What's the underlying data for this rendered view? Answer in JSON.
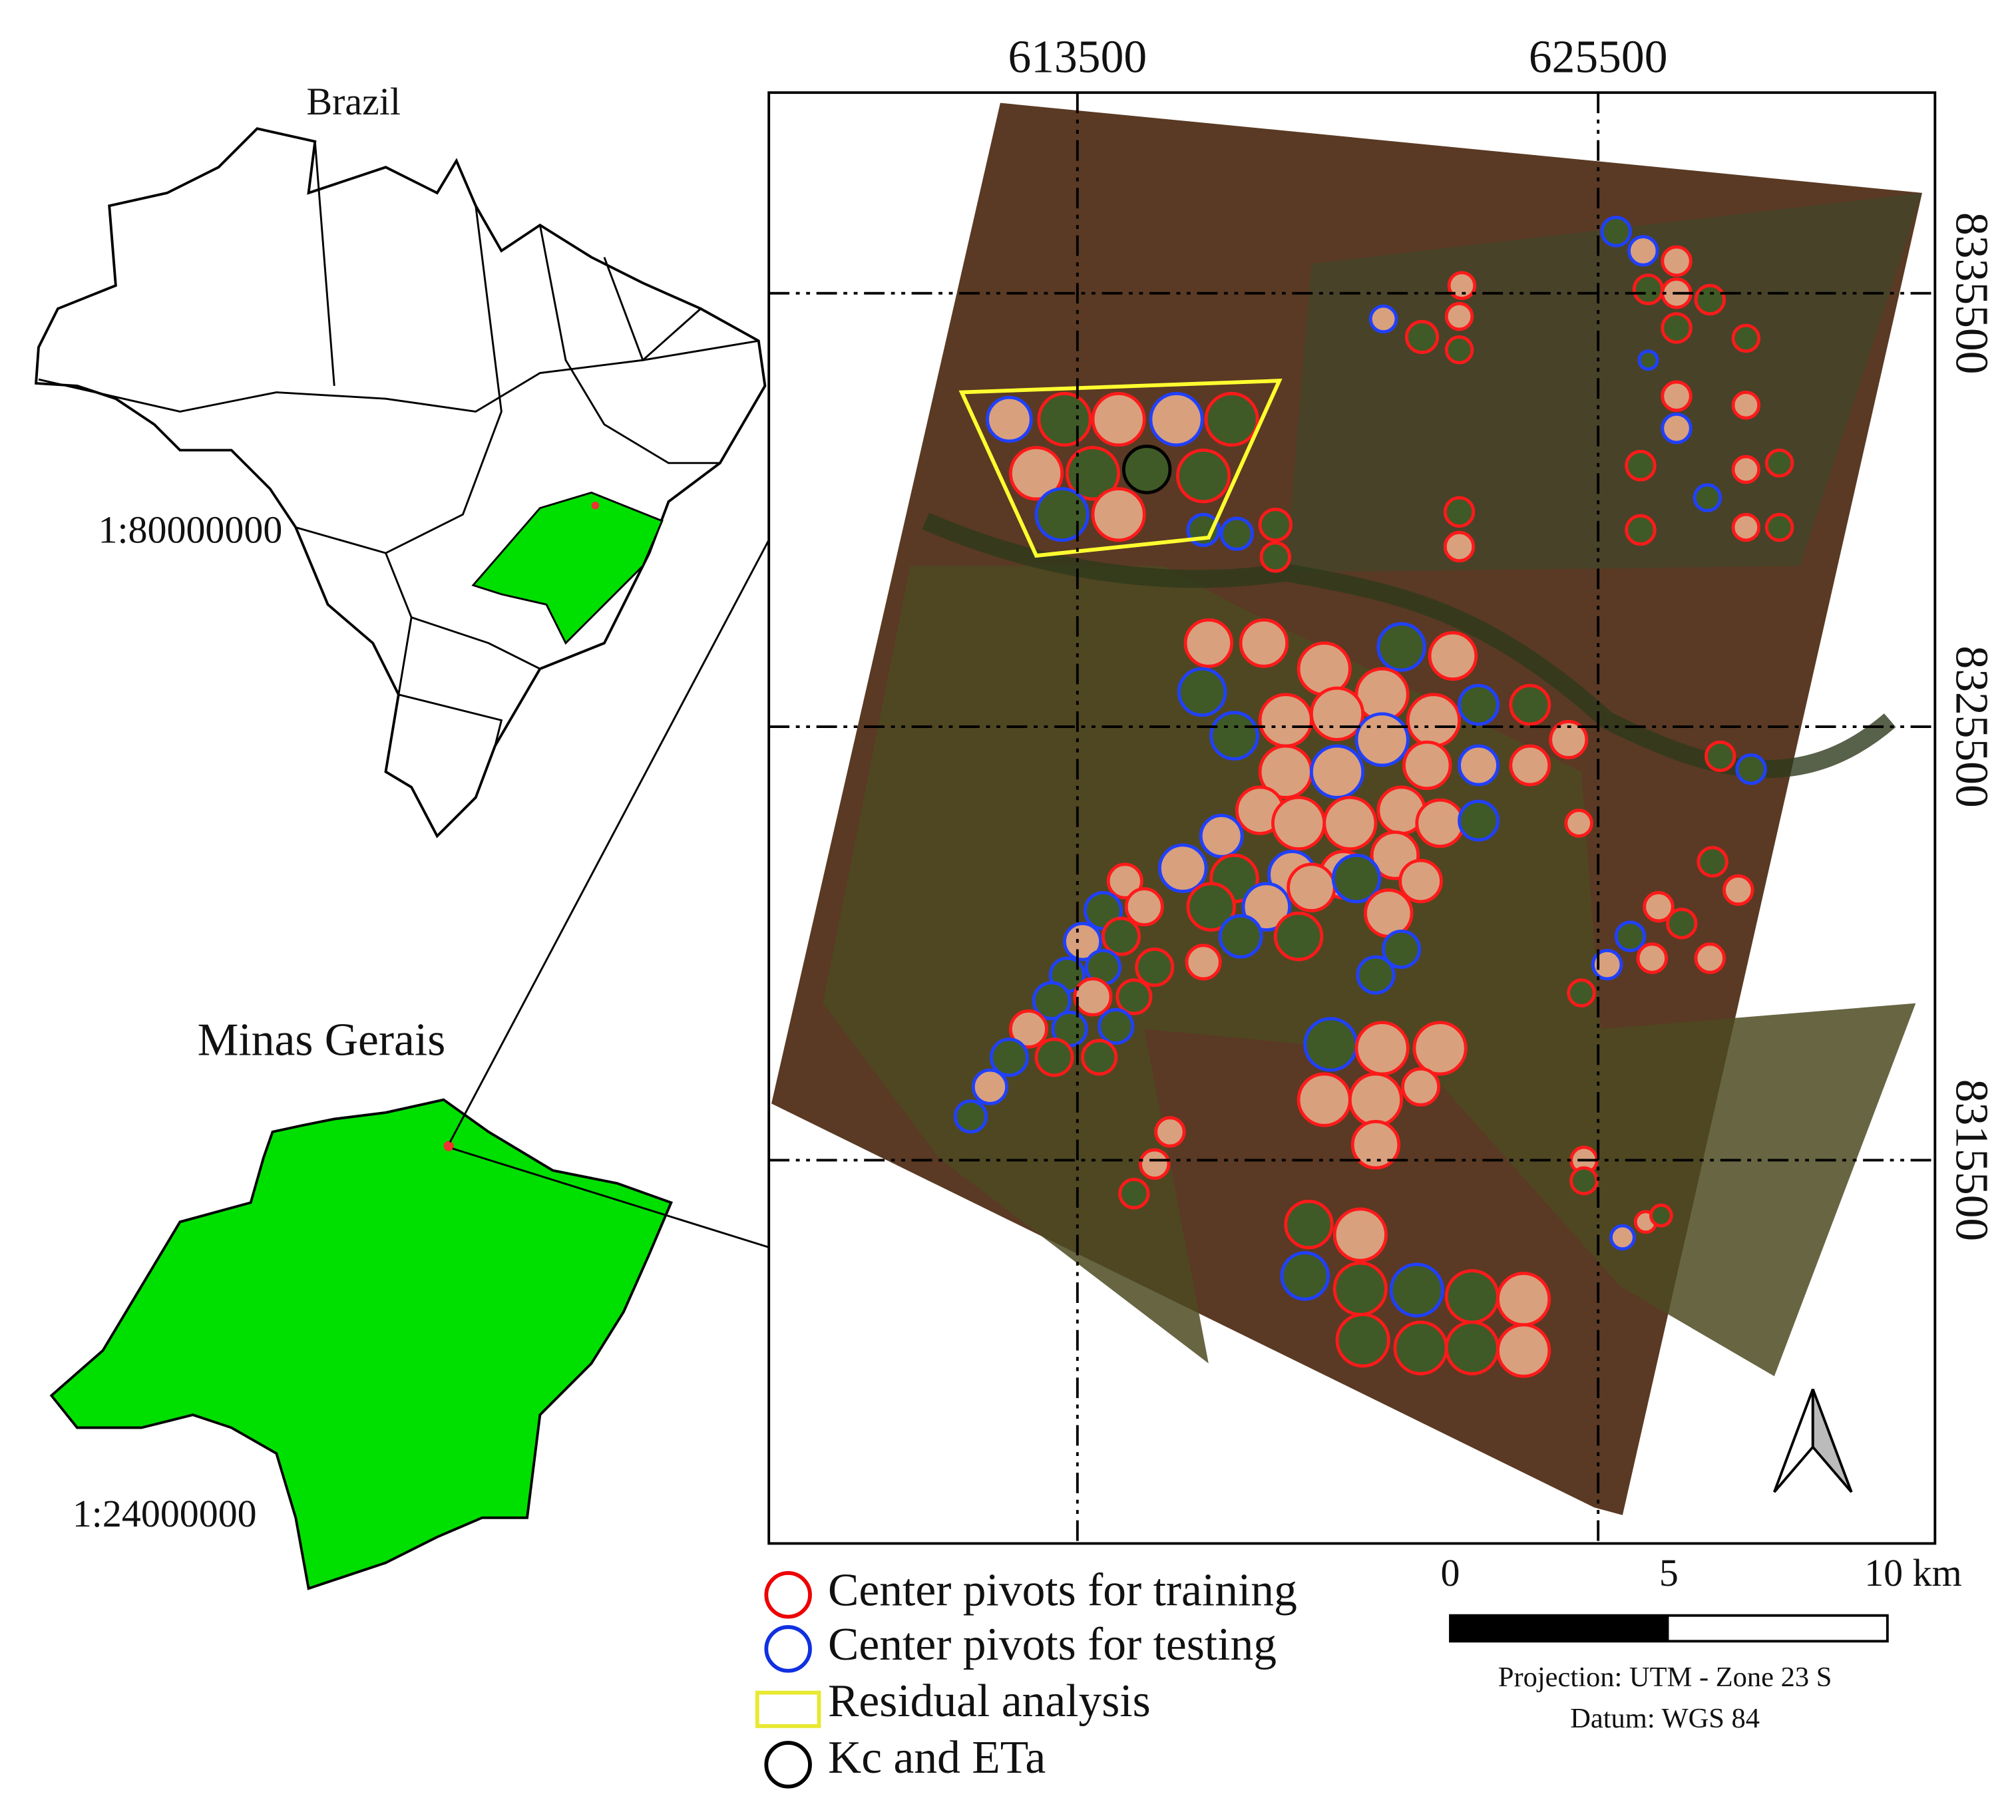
{
  "overview": {
    "title": "Brazil",
    "scale": "1:80000000"
  },
  "state": {
    "title": "Minas Gerais",
    "scale": "1:24000000"
  },
  "grid": {
    "eastings": [
      "613500",
      "625500"
    ],
    "northings": [
      "8335500",
      "8325500",
      "8315500"
    ]
  },
  "legend": {
    "items": [
      "Center pivots  for training",
      "Center pivots  for testing",
      "Residual analysis",
      "Kc and ETa"
    ]
  },
  "scale_bar": {
    "labels": [
      "0",
      "5",
      "10 km"
    ]
  },
  "projection": "Projection: UTM - Zone 23 S",
  "datum": "Datum: WGS 84"
}
